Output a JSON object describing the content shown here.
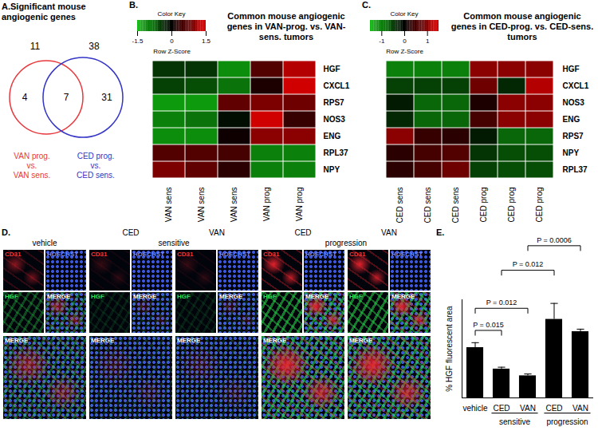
{
  "chart_data": [
    {
      "type": "venn",
      "panel": "A.",
      "title": "Significant mouse angiogenic genes",
      "sets": [
        {
          "name": [
            "VAN prog.",
            "vs.",
            "VAN sens."
          ],
          "total": 11,
          "only": 4,
          "color": "#e8383d"
        },
        {
          "name": [
            "CED prog.",
            "vs.",
            "CED sens."
          ],
          "total": 38,
          "only": 31,
          "color": "#3535c8"
        }
      ],
      "overlap": 7
    },
    {
      "type": "heatmap",
      "panel": "B.",
      "title": "Common mouse angiogenic genes in VAN-prog. vs. VAN-sens. tumors",
      "x": [
        "VAN sens",
        "VAN sens",
        "VAN sens",
        "VAN prog",
        "VAN prog"
      ],
      "y": [
        "HGF",
        "CXCL1",
        "RPS7",
        "NOS3",
        "ENG",
        "RPL37",
        "NPY"
      ],
      "values": [
        [
          -0.4,
          -0.4,
          -1.1,
          0.6,
          1.3
        ],
        [
          -0.5,
          -0.6,
          -0.9,
          0.2,
          1.5
        ],
        [
          -1.2,
          -1.2,
          0.7,
          0.9,
          0.8
        ],
        [
          -1.0,
          -0.9,
          -0.1,
          1.6,
          0.4
        ],
        [
          -1.1,
          -1.1,
          0.1,
          1.0,
          1.0
        ],
        [
          0.6,
          0.6,
          0.5,
          -1.0,
          -1.0
        ],
        [
          0.9,
          0.7,
          0.3,
          -1.0,
          -1.0
        ]
      ],
      "colorbar": {
        "title": "Color Key",
        "label": "Row Z-Score",
        "lim": [
          -1.5,
          1.5
        ],
        "ticks": [
          -1.5,
          0,
          1.5
        ],
        "colors": [
          "#10c010",
          "#000000",
          "#d00000"
        ]
      }
    },
    {
      "type": "heatmap",
      "panel": "C.",
      "title": "Common mouse angiogenic genes in CED-prog. vs. CED-sens. tumors",
      "x": [
        "CED sens",
        "CED sens",
        "CED sens",
        "CED prog",
        "CED prog",
        "CED prog"
      ],
      "y": [
        "HGF",
        "CXCL1",
        "NOS3",
        "ENG",
        "RPS7",
        "NPY",
        "RPL37"
      ],
      "values": [
        [
          -1.0,
          -1.0,
          -1.0,
          1.0,
          1.0,
          1.0
        ],
        [
          -0.5,
          -0.5,
          -0.5,
          0.8,
          -0.3,
          1.3
        ],
        [
          -0.2,
          -0.8,
          -0.8,
          0.2,
          1.0,
          1.0
        ],
        [
          -0.3,
          -0.8,
          -0.8,
          0.5,
          1.0,
          1.0
        ],
        [
          1.0,
          0.4,
          0.3,
          -0.2,
          -0.8,
          -0.8
        ],
        [
          0.3,
          0.5,
          0.6,
          -0.4,
          -0.6,
          -0.6
        ],
        [
          0.3,
          0.5,
          0.8,
          -0.5,
          -0.6,
          -0.6
        ]
      ],
      "colorbar": {
        "title": "Color Key",
        "label": "Row Z-Score",
        "lim": [
          -1.5,
          1.5
        ],
        "ticks": [
          -1,
          0,
          1
        ],
        "colors": [
          "#10c010",
          "#000000",
          "#d00000"
        ]
      }
    },
    {
      "type": "image_grid",
      "panel": "D.",
      "channels": [
        "CD31",
        "HOECHST",
        "HGF",
        "MERGE"
      ],
      "groups": [
        {
          "name": "vehicle",
          "columns": [
            null
          ]
        },
        {
          "name": "sensitive",
          "columns": [
            "CED",
            "VAN"
          ]
        },
        {
          "name": "progression",
          "columns": [
            "CED",
            "VAN"
          ]
        }
      ]
    },
    {
      "type": "bar",
      "panel": "E.",
      "categories": [
        "vehicle",
        "CED",
        "VAN",
        "CED",
        "VAN"
      ],
      "values": [
        41,
        23.5,
        18,
        64,
        54
      ],
      "errors": [
        4,
        1.5,
        1.5,
        13,
        2
      ],
      "color": "#000000",
      "ylabel": "% HGF fluorescent area",
      "ylim": [
        0,
        80
      ],
      "yticks": [],
      "tick_labels": "x",
      "groups": [
        {
          "name": "sensitive",
          "from": 1,
          "to": 2
        },
        {
          "name": "progression",
          "from": 3,
          "to": 4
        }
      ],
      "comparisons": [
        {
          "from": 0,
          "to": 1,
          "y": 55,
          "label": "P = 0.015"
        },
        {
          "from": 0,
          "to": 2,
          "y": 73,
          "label": "P = 0.012"
        },
        {
          "from": 1,
          "to": 3,
          "y": 104,
          "label": "P = 0.012"
        },
        {
          "from": 2,
          "to": 4,
          "y": 124,
          "label": "P = 0.0006"
        }
      ]
    }
  ]
}
